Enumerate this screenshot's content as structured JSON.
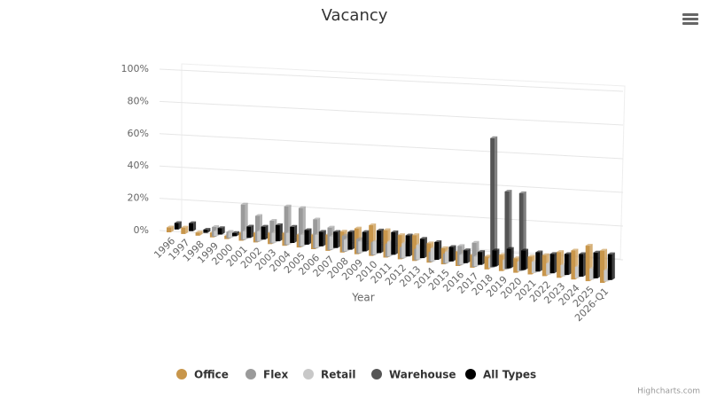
{
  "chart_data": {
    "type": "bar3d",
    "title": "Vacancy",
    "x_label": "Year",
    "credits": "Highcharts.com",
    "categories": [
      "1996",
      "1997",
      "1998",
      "1999",
      "2000",
      "2001",
      "2002",
      "2003",
      "2004",
      "2005",
      "2006",
      "2007",
      "2008",
      "2009",
      "2010",
      "2011",
      "2012",
      "2013",
      "2014",
      "2015",
      "2016",
      "2017",
      "2018",
      "2019",
      "2020",
      "2021",
      "2022",
      "2023",
      "2024",
      "2025",
      "2026-Q1"
    ],
    "series": [
      {
        "name": "Office",
        "color": "#c8964b",
        "values": [
          3,
          4,
          2,
          3,
          2,
          5,
          6,
          7,
          8,
          8,
          9,
          10,
          13,
          16,
          19,
          17,
          15,
          16,
          12,
          10,
          9,
          8,
          8,
          10,
          9,
          11,
          13,
          16,
          18,
          22,
          20
        ]
      },
      {
        "name": "Flex",
        "color": "#9a9a9a",
        "values": [
          null,
          null,
          null,
          6,
          4,
          22,
          16,
          14,
          24,
          24,
          18,
          14,
          10,
          9,
          8,
          8,
          7,
          7,
          6,
          6,
          12,
          15,
          null,
          null,
          null,
          null,
          null,
          null,
          null,
          null,
          null
        ]
      },
      {
        "name": "Retail",
        "color": "#c8c8c8",
        "values": [
          null,
          null,
          null,
          3,
          3,
          5,
          6,
          6,
          7,
          7,
          8,
          8,
          7,
          7,
          8,
          9,
          9,
          9,
          8,
          7,
          6,
          6,
          6,
          6,
          6,
          7,
          7,
          7,
          7,
          7,
          7
        ]
      },
      {
        "name": "Warehouse",
        "color": "#555555",
        "values": [
          null,
          null,
          null,
          null,
          null,
          null,
          null,
          null,
          null,
          null,
          null,
          null,
          null,
          null,
          null,
          null,
          null,
          null,
          null,
          null,
          null,
          null,
          80,
          48,
          48,
          null,
          null,
          null,
          null,
          null,
          null
        ]
      },
      {
        "name": "All Types",
        "color": "#000000",
        "values": [
          4,
          5,
          2,
          4,
          2,
          7,
          8,
          10,
          10,
          9,
          9,
          10,
          11,
          12,
          14,
          14,
          13,
          12,
          11,
          9,
          8,
          8,
          10,
          12,
          12,
          12,
          12,
          13,
          14,
          16,
          16
        ]
      }
    ],
    "ylim": [
      0,
      100
    ],
    "yticks": [
      {
        "value": 0,
        "label": "0%"
      },
      {
        "value": 20,
        "label": "20%"
      },
      {
        "value": 40,
        "label": "40%"
      },
      {
        "value": 60,
        "label": "60%"
      },
      {
        "value": 80,
        "label": "80%"
      },
      {
        "value": 100,
        "label": "100%"
      }
    ],
    "grid": true
  }
}
